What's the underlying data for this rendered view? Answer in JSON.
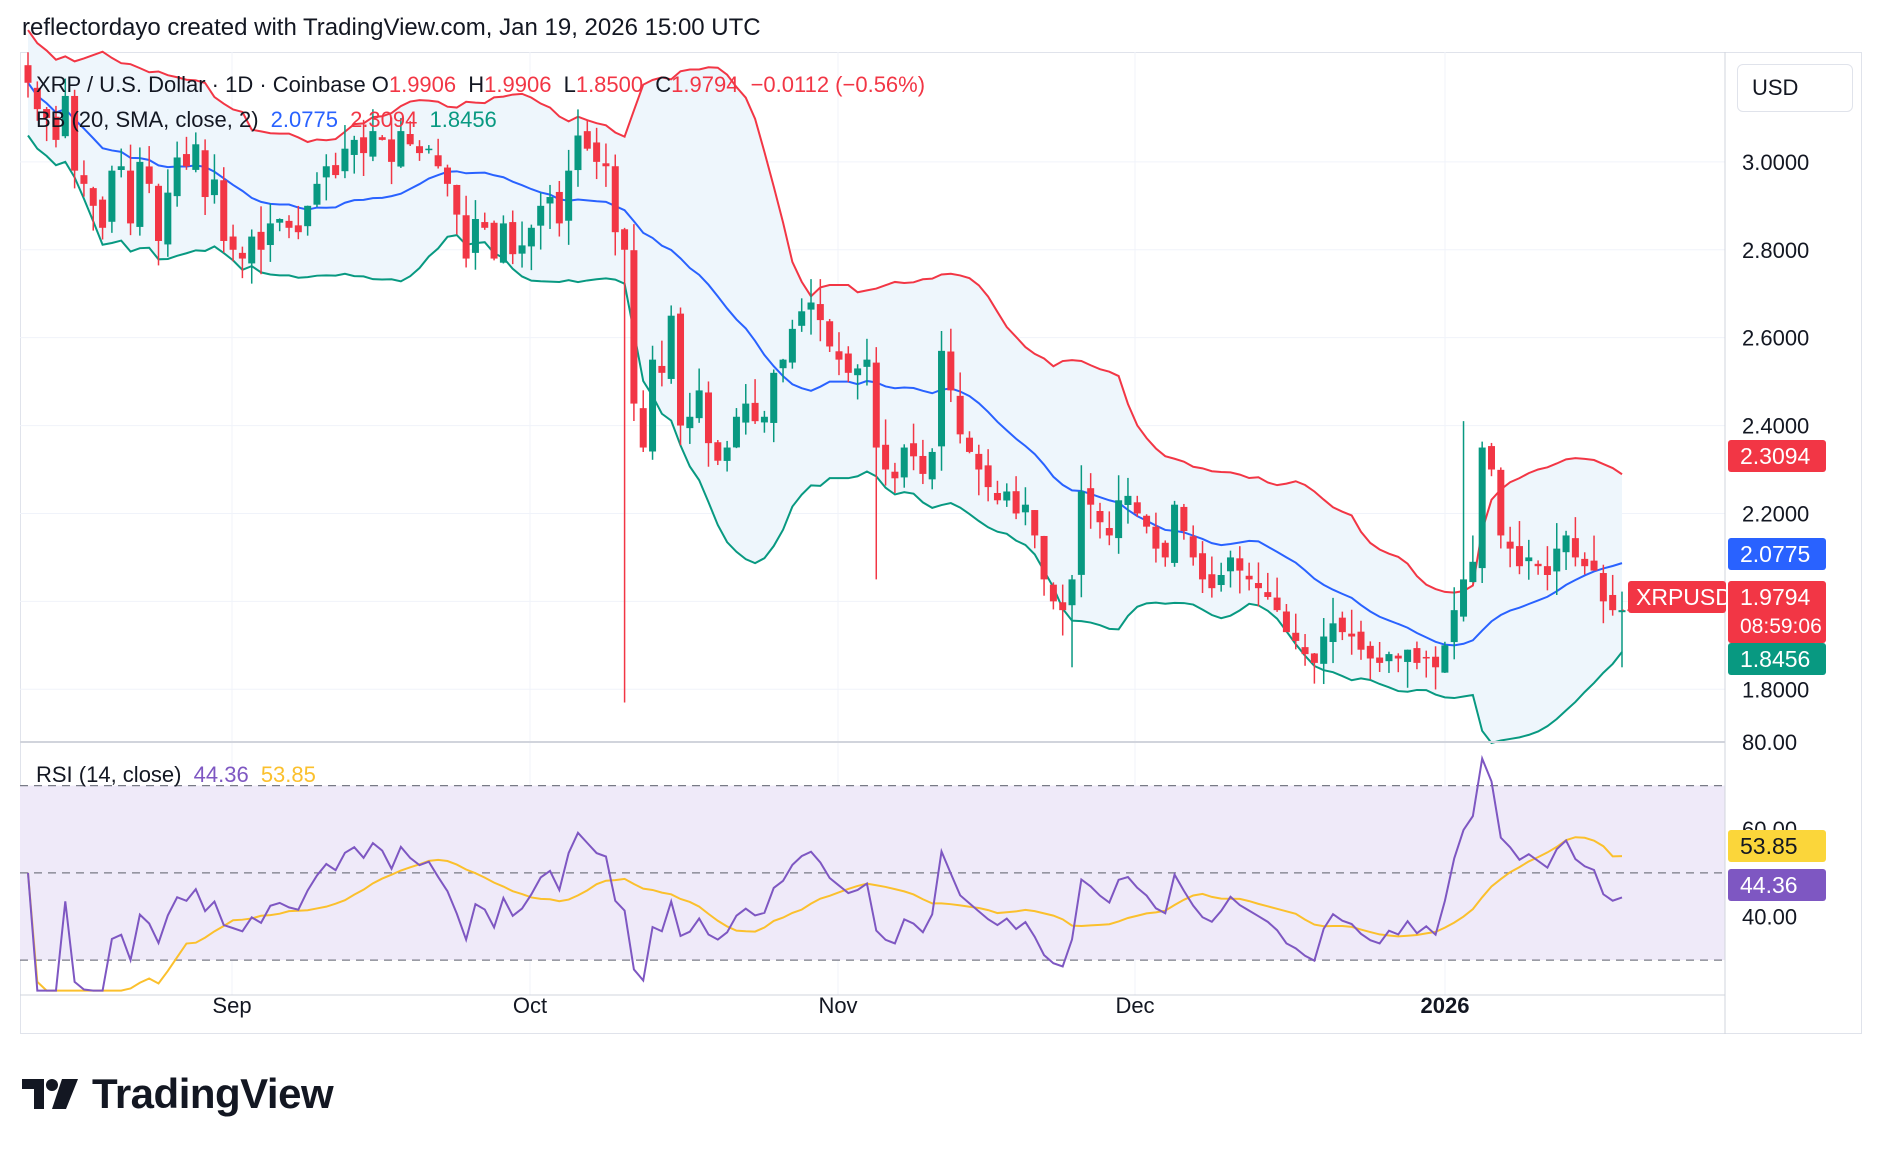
{
  "header": {
    "attribution": "reflectordayo created with TradingView.com, Jan 19, 2026 15:00 UTC"
  },
  "symbol": {
    "title": "XRP / U.S. Dollar · 1D · Coinbase",
    "o_label": "O",
    "o": "1.9906",
    "h_label": "H",
    "h": "1.9906",
    "l_label": "L",
    "l": "1.8500",
    "c_label": "C",
    "c": "1.9794",
    "change": "−0.0112 (−0.56%)"
  },
  "bb_legend": {
    "label": "BB (20, SMA, close, 2)",
    "basis": "2.0775",
    "upper": "2.3094",
    "lower": "1.8456"
  },
  "rsi_legend": {
    "label": "RSI (14, close)",
    "rsi": "44.36",
    "ma": "53.85"
  },
  "currency": "USD",
  "tags": {
    "upper": "2.3094",
    "basis": "2.0775",
    "symbol": "XRPUSD",
    "price": "1.9794",
    "countdown": "08:59:06",
    "lower": "1.8456",
    "rsi_ma": "53.85",
    "rsi": "44.36"
  },
  "colors": {
    "up": "#089981",
    "down": "#f23645",
    "basis": "#2962ff",
    "upper": "#f23645",
    "lower": "#089981",
    "band_fill": "#eef6fc",
    "rsi": "#7e57c2",
    "rsi_ma": "#fbc02d",
    "rsi_band": "#efeaf9",
    "grid": "#f0f3fa",
    "text": "#131722"
  },
  "footer": {
    "brand": "TradingView",
    "logo_icon": "tradingview-logo-icon"
  },
  "chart_data": [
    {
      "type": "candlestick",
      "title": "XRP / U.S. Dollar · 1D · Coinbase",
      "y_ticks": [
        "3.0000",
        "2.8000",
        "2.6000",
        "2.4000",
        "2.2000",
        "1.8000"
      ],
      "x_ticks": [
        "Sep",
        "Oct",
        "Nov",
        "Dec",
        "2026"
      ],
      "ylim": [
        1.68,
        3.25
      ],
      "x": [
        "2025-08-14",
        "2026-01-19"
      ],
      "close_series": [
        3.18,
        3.12,
        3.1,
        3.05,
        3.15,
        2.98,
        2.95,
        2.9,
        2.85,
        2.98,
        2.99,
        2.86,
        3.0,
        2.95,
        2.82,
        2.93,
        3.01,
        2.99,
        3.04,
        2.92,
        2.96,
        2.82,
        2.8,
        2.78,
        2.83,
        2.8,
        2.86,
        2.87,
        2.85,
        2.84,
        2.9,
        2.95,
        2.99,
        2.97,
        3.03,
        3.05,
        3.02,
        3.07,
        3.05,
        3.0,
        3.07,
        3.04,
        3.02,
        3.03,
        2.99,
        2.95,
        2.88,
        2.78,
        2.87,
        2.85,
        2.78,
        2.86,
        2.79,
        2.81,
        2.85,
        2.9,
        2.92,
        2.86,
        2.98,
        3.06,
        3.03,
        3.0,
        2.99,
        2.84,
        2.8,
        2.45,
        2.35,
        2.55,
        2.52,
        2.65,
        2.4,
        2.42,
        2.48,
        2.36,
        2.32,
        2.35,
        2.42,
        2.45,
        2.41,
        2.42,
        2.52,
        2.55,
        2.62,
        2.66,
        2.68,
        2.64,
        2.58,
        2.55,
        2.52,
        2.53,
        2.55,
        2.35,
        2.3,
        2.28,
        2.35,
        2.33,
        2.29,
        2.34,
        2.57,
        2.48,
        2.38,
        2.34,
        2.3,
        2.26,
        2.23,
        2.25,
        2.2,
        2.22,
        2.15,
        2.05,
        2.0,
        1.98,
        2.05,
        2.25,
        2.22,
        2.18,
        2.15,
        2.23,
        2.24,
        2.2,
        2.17,
        2.12,
        2.1,
        2.22,
        2.16,
        2.1,
        2.05,
        2.03,
        2.06,
        2.1,
        2.07,
        2.05,
        2.03,
        2.01,
        1.98,
        1.93,
        1.91,
        1.88,
        1.86,
        1.92,
        1.95,
        1.93,
        1.92,
        1.89,
        1.87,
        1.86,
        1.88,
        1.87,
        1.89,
        1.86,
        1.87,
        1.85,
        1.9,
        1.98,
        2.05,
        2.09,
        2.35,
        2.3,
        2.15,
        2.12,
        2.08,
        2.1,
        2.08,
        2.06,
        2.12,
        2.15,
        2.1,
        2.08,
        2.07,
        2.0,
        1.98,
        1.98
      ],
      "bb": {
        "period": 20,
        "stddev": 2,
        "basis_last": 2.0775,
        "upper_last": 2.3094,
        "lower_last": 1.8456
      }
    },
    {
      "type": "line",
      "title": "RSI (14, close)",
      "y_ticks": [
        "80.00",
        "60.00",
        "40.00"
      ],
      "ylim": [
        22,
        80
      ],
      "bands": [
        70,
        50,
        30
      ],
      "series": [
        {
          "name": "RSI",
          "last": 44.36
        },
        {
          "name": "MA",
          "last": 53.85
        }
      ]
    }
  ]
}
